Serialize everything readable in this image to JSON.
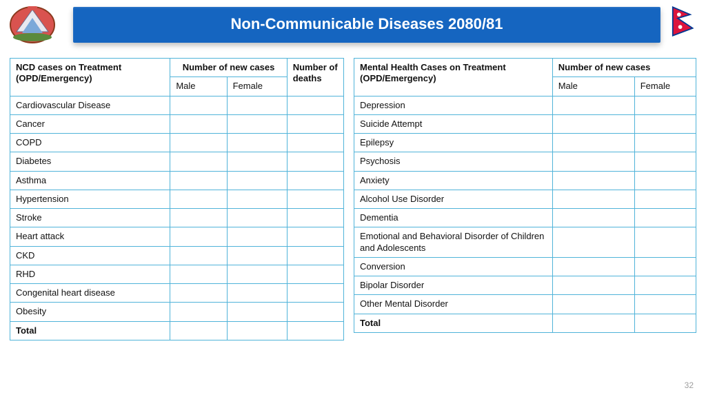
{
  "title": "Non-Communicable Diseases 2080/81",
  "page_number": "32",
  "colors": {
    "title_bg": "#1565c0",
    "title_text": "#ffffff",
    "table_border": "#4fb3d9",
    "page_num": "#9e9e9e"
  },
  "left_table": {
    "header_row1_col1": "NCD cases on Treatment (OPD/Emergency)",
    "header_row1_col2": "Number of new cases",
    "header_row1_col3": "Number of deaths",
    "header_row2_male": "Male",
    "header_row2_female": "Female",
    "rows": [
      "Cardiovascular Disease",
      "Cancer",
      "COPD",
      "Diabetes",
      "Asthma",
      "Hypertension",
      "Stroke",
      "Heart attack",
      "CKD",
      "RHD",
      "Congenital heart disease",
      "Obesity"
    ],
    "total_label": "Total"
  },
  "right_table": {
    "header_row1_col1": "Mental Health Cases on Treatment (OPD/Emergency)",
    "header_row1_col2": "Number of new cases",
    "header_row2_male": "Male",
    "header_row2_female": "Female",
    "rows": [
      "Depression",
      "Suicide Attempt",
      "Epilepsy",
      "Psychosis",
      "Anxiety",
      "Alcohol Use Disorder",
      "Dementia",
      "Emotional and Behavioral Disorder of Children and Adolescents",
      "Conversion",
      "Bipolar Disorder",
      "Other Mental Disorder"
    ],
    "total_label": "Total"
  }
}
